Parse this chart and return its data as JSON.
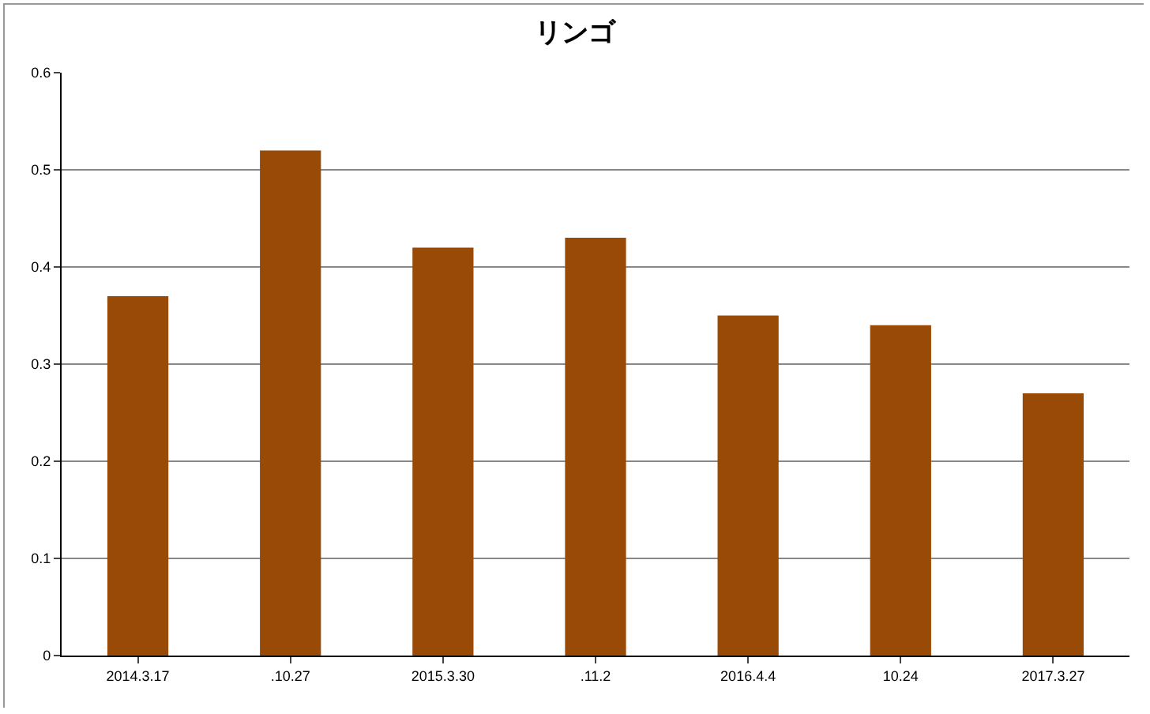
{
  "chart_data": {
    "type": "bar",
    "title": "リンゴ",
    "categories": [
      "2014.3.17",
      ".10.27",
      "2015.3.30",
      ".11.2",
      "2016.4.4",
      "10.24",
      "2017.3.27"
    ],
    "values": [
      0.37,
      0.52,
      0.42,
      0.43,
      0.35,
      0.34,
      0.27
    ],
    "color": "#9a4a07",
    "ylim": [
      0,
      0.6
    ],
    "yticks": [
      0,
      0.1,
      0.2,
      0.3,
      0.4,
      0.5,
      0.6
    ],
    "grid": "y"
  }
}
